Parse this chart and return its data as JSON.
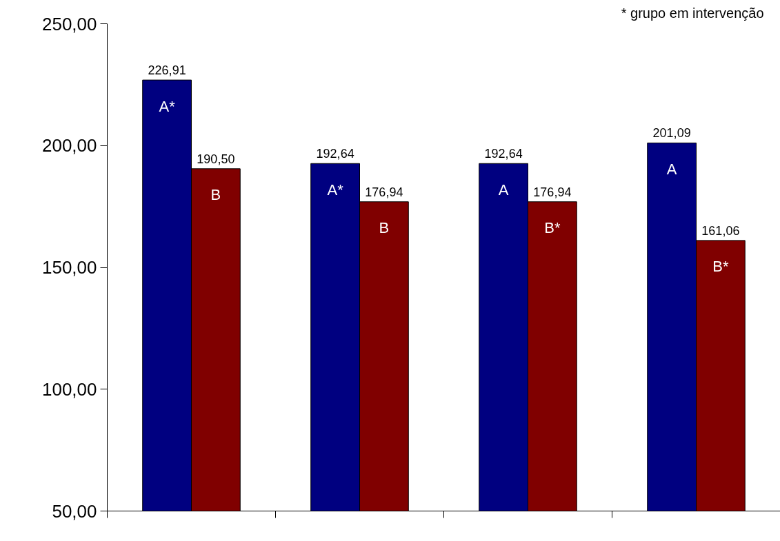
{
  "chart_data": {
    "type": "bar",
    "categories": [
      null,
      null,
      null,
      null
    ],
    "series": [
      {
        "color": "#000080",
        "values": [
          226.91,
          192.64,
          192.64,
          201.09
        ],
        "value_labels": [
          "226,91",
          "192,64",
          "192,64",
          "201,09"
        ]
      },
      {
        "color": "#800000",
        "values": [
          190.5,
          176.94,
          176.94,
          161.06
        ],
        "value_labels": [
          "190,50",
          "176,94",
          "176,94",
          "161,06"
        ]
      }
    ],
    "ylim": [
      50,
      250
    ],
    "yticks": [
      {
        "value": 50,
        "label": "50,00"
      },
      {
        "value": 100,
        "label": "100,00"
      },
      {
        "value": 150,
        "label": "150,00"
      },
      {
        "value": 200,
        "label": "200,00"
      },
      {
        "value": 250,
        "label": "250,00"
      }
    ],
    "grid": false,
    "annotations": [
      "* grupo em intervenção",
      "A*",
      "B",
      "A*",
      "B",
      "A",
      "B*",
      "A",
      "B*"
    ]
  }
}
